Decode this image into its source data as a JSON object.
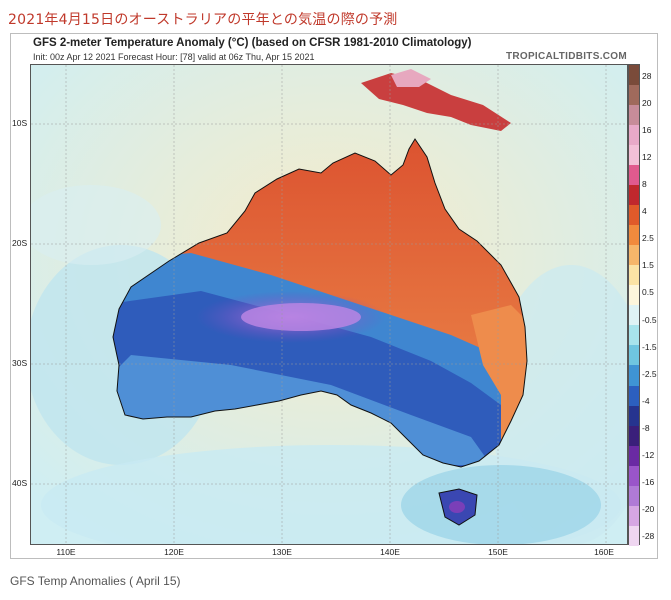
{
  "heading": "2021年4月15日のオーストラリアの平年との気温の際の予測",
  "map": {
    "title": "GFS 2-meter Temperature Anomaly (°C) (based on CFSR 1981-2010 Climatology)",
    "subtitle": "Init: 00z Apr 12 2021   Forecast Hour: [78]   valid at 06z Thu, Apr 15 2021",
    "brand": "TROPICALTIDBITS.COM",
    "lat_labels": [
      "10S",
      "20S",
      "30S",
      "40S"
    ],
    "lon_labels": [
      "110E",
      "120E",
      "130E",
      "140E",
      "150E",
      "160E"
    ]
  },
  "colorbar": {
    "labels": [
      "28",
      "20",
      "16",
      "12",
      "8",
      "4",
      "2.5",
      "1.5",
      "0.5",
      "-0.5",
      "-1.5",
      "-2.5",
      "-4",
      "-8",
      "-12",
      "-16",
      "-20",
      "-28"
    ],
    "colors": [
      "#7a4b3a",
      "#a06a5c",
      "#c78c99",
      "#e8a9c8",
      "#f3c0d8",
      "#e05a8e",
      "#c0282d",
      "#e05a2a",
      "#f18a3d",
      "#f6b66a",
      "#fbe3a5",
      "#fdf6dc",
      "#dff3f5",
      "#a8e4ec",
      "#6fc6e0",
      "#3f94d4",
      "#2c5fbf",
      "#26348f",
      "#3a1f7a",
      "#6a2aa3",
      "#9a55c9",
      "#b07ad6",
      "#d6a6e3",
      "#efd6f1"
    ]
  },
  "caption": "GFS Temp Anomalies ( April 15)"
}
